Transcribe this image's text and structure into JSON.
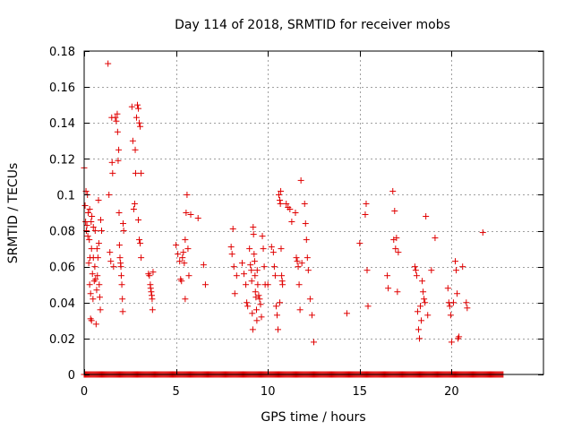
{
  "chart_data": {
    "type": "scatter",
    "title": "Day 114 of 2018, SRMTID for receiver mobs",
    "xlabel": "GPS time / hours",
    "ylabel": "SRMTID / TECUs",
    "xlim": [
      0,
      25
    ],
    "ylim": [
      0,
      0.18
    ],
    "xticks": [
      0,
      5,
      10,
      15,
      20
    ],
    "yticks": [
      0,
      0.02,
      0.04,
      0.06,
      0.08,
      0.1,
      0.12,
      0.14,
      0.16,
      0.18
    ],
    "xtick_labels": [
      "0",
      "5",
      "10",
      "15",
      "20"
    ],
    "ytick_labels": [
      "0",
      "0.02",
      "0.04",
      "0.06",
      "0.08",
      "0.1",
      "0.12",
      "0.14",
      "0.16",
      "0.18"
    ],
    "grid": true,
    "marker": "+",
    "color": "#e00000",
    "zero_baseline_range": [
      0,
      22.8
    ],
    "points": [
      [
        0.0,
        0.115
      ],
      [
        0.05,
        0.094
      ],
      [
        0.08,
        0.085
      ],
      [
        0.1,
        0.102
      ],
      [
        0.12,
        0.08
      ],
      [
        0.15,
        0.083
      ],
      [
        0.18,
        0.1
      ],
      [
        0.2,
        0.077
      ],
      [
        0.22,
        0.09
      ],
      [
        0.25,
        0.062
      ],
      [
        0.28,
        0.075
      ],
      [
        0.3,
        0.092
      ],
      [
        0.3,
        0.05
      ],
      [
        0.32,
        0.065
      ],
      [
        0.35,
        0.045
      ],
      [
        0.35,
        0.031
      ],
      [
        0.38,
        0.085
      ],
      [
        0.4,
        0.07
      ],
      [
        0.4,
        0.03
      ],
      [
        0.42,
        0.088
      ],
      [
        0.45,
        0.056
      ],
      [
        0.48,
        0.042
      ],
      [
        0.5,
        0.082
      ],
      [
        0.5,
        0.065
      ],
      [
        0.55,
        0.052
      ],
      [
        0.58,
        0.06
      ],
      [
        0.6,
        0.08
      ],
      [
        0.62,
        0.053
      ],
      [
        0.65,
        0.028
      ],
      [
        0.68,
        0.047
      ],
      [
        0.7,
        0.07
      ],
      [
        0.72,
        0.055
      ],
      [
        0.75,
        0.065
      ],
      [
        0.78,
        0.097
      ],
      [
        0.8,
        0.073
      ],
      [
        0.82,
        0.05
      ],
      [
        0.85,
        0.043
      ],
      [
        0.88,
        0.036
      ],
      [
        0.9,
        0.086
      ],
      [
        0.95,
        0.08
      ],
      [
        1.3,
        0.173
      ],
      [
        1.35,
        0.1
      ],
      [
        1.4,
        0.068
      ],
      [
        1.45,
        0.063
      ],
      [
        1.5,
        0.143
      ],
      [
        1.52,
        0.118
      ],
      [
        1.55,
        0.112
      ],
      [
        1.6,
        0.06
      ],
      [
        1.7,
        0.143
      ],
      [
        1.75,
        0.141
      ],
      [
        1.8,
        0.145
      ],
      [
        1.82,
        0.135
      ],
      [
        1.85,
        0.119
      ],
      [
        1.88,
        0.125
      ],
      [
        1.9,
        0.09
      ],
      [
        1.92,
        0.072
      ],
      [
        1.95,
        0.065
      ],
      [
        1.98,
        0.062
      ],
      [
        2.0,
        0.06
      ],
      [
        2.02,
        0.055
      ],
      [
        2.05,
        0.05
      ],
      [
        2.08,
        0.042
      ],
      [
        2.1,
        0.035
      ],
      [
        2.12,
        0.084
      ],
      [
        2.15,
        0.08
      ],
      [
        2.6,
        0.149
      ],
      [
        2.65,
        0.13
      ],
      [
        2.7,
        0.092
      ],
      [
        2.75,
        0.095
      ],
      [
        2.78,
        0.125
      ],
      [
        2.8,
        0.112
      ],
      [
        2.85,
        0.143
      ],
      [
        2.9,
        0.15
      ],
      [
        2.95,
        0.148
      ],
      [
        3.0,
        0.14
      ],
      [
        3.05,
        0.138
      ],
      [
        3.1,
        0.112
      ],
      [
        3.0,
        0.075
      ],
      [
        3.05,
        0.073
      ],
      [
        2.95,
        0.086
      ],
      [
        3.1,
        0.065
      ],
      [
        3.5,
        0.056
      ],
      [
        3.55,
        0.055
      ],
      [
        3.6,
        0.05
      ],
      [
        3.62,
        0.048
      ],
      [
        3.65,
        0.046
      ],
      [
        3.68,
        0.044
      ],
      [
        3.7,
        0.042
      ],
      [
        3.72,
        0.036
      ],
      [
        3.75,
        0.057
      ],
      [
        5.0,
        0.072
      ],
      [
        5.1,
        0.067
      ],
      [
        5.2,
        0.063
      ],
      [
        5.25,
        0.053
      ],
      [
        5.3,
        0.052
      ],
      [
        5.35,
        0.065
      ],
      [
        5.4,
        0.068
      ],
      [
        5.45,
        0.062
      ],
      [
        5.5,
        0.075
      ],
      [
        5.55,
        0.09
      ],
      [
        5.6,
        0.1
      ],
      [
        5.65,
        0.07
      ],
      [
        5.7,
        0.055
      ],
      [
        5.5,
        0.042
      ],
      [
        5.8,
        0.089
      ],
      [
        6.2,
        0.087
      ],
      [
        6.5,
        0.061
      ],
      [
        6.6,
        0.05
      ],
      [
        8.0,
        0.071
      ],
      [
        8.05,
        0.067
      ],
      [
        8.1,
        0.081
      ],
      [
        8.15,
        0.06
      ],
      [
        8.2,
        0.045
      ],
      [
        8.3,
        0.055
      ],
      [
        8.6,
        0.062
      ],
      [
        8.7,
        0.056
      ],
      [
        8.8,
        0.05
      ],
      [
        8.85,
        0.04
      ],
      [
        8.9,
        0.038
      ],
      [
        9.0,
        0.07
      ],
      [
        9.05,
        0.061
      ],
      [
        9.1,
        0.058
      ],
      [
        9.12,
        0.052
      ],
      [
        9.15,
        0.034
      ],
      [
        9.18,
        0.025
      ],
      [
        9.2,
        0.082
      ],
      [
        9.22,
        0.078
      ],
      [
        9.25,
        0.067
      ],
      [
        9.28,
        0.063
      ],
      [
        9.3,
        0.055
      ],
      [
        9.32,
        0.046
      ],
      [
        9.35,
        0.043
      ],
      [
        9.38,
        0.036
      ],
      [
        9.4,
        0.03
      ],
      [
        9.42,
        0.058
      ],
      [
        9.45,
        0.05
      ],
      [
        9.5,
        0.044
      ],
      [
        9.55,
        0.042
      ],
      [
        9.6,
        0.039
      ],
      [
        9.65,
        0.032
      ],
      [
        9.7,
        0.077
      ],
      [
        9.75,
        0.07
      ],
      [
        9.8,
        0.06
      ],
      [
        9.85,
        0.05
      ],
      [
        10.0,
        0.05
      ],
      [
        10.2,
        0.071
      ],
      [
        10.3,
        0.068
      ],
      [
        10.35,
        0.06
      ],
      [
        10.4,
        0.055
      ],
      [
        10.45,
        0.038
      ],
      [
        10.5,
        0.033
      ],
      [
        10.55,
        0.025
      ],
      [
        10.6,
        0.1
      ],
      [
        10.65,
        0.097
      ],
      [
        10.68,
        0.095
      ],
      [
        10.7,
        0.102
      ],
      [
        10.72,
        0.07
      ],
      [
        10.75,
        0.055
      ],
      [
        10.78,
        0.052
      ],
      [
        10.8,
        0.05
      ],
      [
        10.65,
        0.04
      ],
      [
        11.0,
        0.095
      ],
      [
        11.1,
        0.093
      ],
      [
        11.2,
        0.092
      ],
      [
        11.3,
        0.085
      ],
      [
        11.5,
        0.09
      ],
      [
        11.55,
        0.065
      ],
      [
        11.6,
        0.063
      ],
      [
        11.65,
        0.06
      ],
      [
        11.7,
        0.05
      ],
      [
        11.75,
        0.036
      ],
      [
        11.8,
        0.108
      ],
      [
        11.85,
        0.062
      ],
      [
        12.0,
        0.095
      ],
      [
        12.05,
        0.084
      ],
      [
        12.1,
        0.075
      ],
      [
        12.15,
        0.065
      ],
      [
        12.2,
        0.058
      ],
      [
        12.3,
        0.042
      ],
      [
        12.4,
        0.033
      ],
      [
        12.5,
        0.018
      ],
      [
        14.3,
        0.034
      ],
      [
        15.0,
        0.073
      ],
      [
        15.3,
        0.089
      ],
      [
        15.35,
        0.095
      ],
      [
        15.4,
        0.058
      ],
      [
        15.45,
        0.038
      ],
      [
        16.5,
        0.055
      ],
      [
        16.55,
        0.048
      ],
      [
        16.8,
        0.102
      ],
      [
        16.85,
        0.075
      ],
      [
        16.9,
        0.091
      ],
      [
        16.95,
        0.07
      ],
      [
        17.0,
        0.076
      ],
      [
        17.05,
        0.046
      ],
      [
        17.1,
        0.068
      ],
      [
        18.0,
        0.06
      ],
      [
        18.05,
        0.058
      ],
      [
        18.1,
        0.055
      ],
      [
        18.15,
        0.035
      ],
      [
        18.2,
        0.025
      ],
      [
        18.25,
        0.02
      ],
      [
        18.3,
        0.038
      ],
      [
        18.35,
        0.03
      ],
      [
        18.4,
        0.052
      ],
      [
        18.45,
        0.046
      ],
      [
        18.5,
        0.042
      ],
      [
        18.55,
        0.04
      ],
      [
        18.6,
        0.088
      ],
      [
        18.7,
        0.033
      ],
      [
        18.9,
        0.058
      ],
      [
        19.1,
        0.076
      ],
      [
        19.8,
        0.048
      ],
      [
        19.85,
        0.04
      ],
      [
        19.9,
        0.038
      ],
      [
        19.95,
        0.033
      ],
      [
        20.0,
        0.018
      ],
      [
        20.1,
        0.04
      ],
      [
        20.2,
        0.063
      ],
      [
        20.25,
        0.058
      ],
      [
        20.3,
        0.045
      ],
      [
        20.35,
        0.02
      ],
      [
        20.4,
        0.021
      ],
      [
        20.6,
        0.06
      ],
      [
        20.8,
        0.04
      ],
      [
        20.85,
        0.037
      ],
      [
        21.7,
        0.079
      ]
    ]
  }
}
